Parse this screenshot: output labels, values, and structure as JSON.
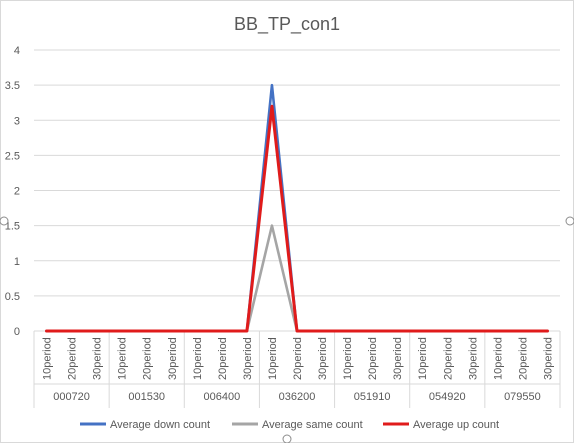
{
  "chart_data": {
    "type": "line",
    "title": "BB_TP_con1",
    "xlabel": "",
    "ylabel": "",
    "ylim": [
      0,
      4
    ],
    "yticks": [
      "0",
      "0.5",
      "1",
      "1.5",
      "2",
      "2.5",
      "3",
      "3.5",
      "4"
    ],
    "grid": true,
    "legend_position": "bottom",
    "groups": [
      "000720",
      "001530",
      "006400",
      "036200",
      "051910",
      "054920",
      "079550"
    ],
    "subcategories": [
      "10period",
      "20period",
      "30period"
    ],
    "categories": [
      "000720 10period",
      "000720 20period",
      "000720 30period",
      "001530 10period",
      "001530 20period",
      "001530 30period",
      "006400 10period",
      "006400 20period",
      "006400 30period",
      "036200 10period",
      "036200 20period",
      "036200 30period",
      "051910 10period",
      "051910 20period",
      "051910 30period",
      "054920 10period",
      "054920 20period",
      "054920 30period",
      "079550 10period",
      "079550 20period",
      "079550 30period"
    ],
    "series": [
      {
        "name": "Average down count",
        "color": "#4472C4",
        "values": [
          0,
          0,
          0,
          0,
          0,
          0,
          0,
          0,
          0,
          3.5,
          0,
          0,
          0,
          0,
          0,
          0,
          0,
          0,
          0,
          0,
          0
        ]
      },
      {
        "name": "Average same count",
        "color": "#A5A5A5",
        "values": [
          0,
          0,
          0,
          0,
          0,
          0,
          0,
          0,
          0,
          1.5,
          0,
          0,
          0,
          0,
          0,
          0,
          0,
          0,
          0,
          0,
          0
        ]
      },
      {
        "name": "Average up count",
        "color": "#E01B1B",
        "values": [
          0,
          0,
          0,
          0,
          0,
          0,
          0,
          0,
          0,
          3.2,
          0,
          0,
          0,
          0,
          0,
          0,
          0,
          0,
          0,
          0,
          0
        ]
      }
    ]
  }
}
